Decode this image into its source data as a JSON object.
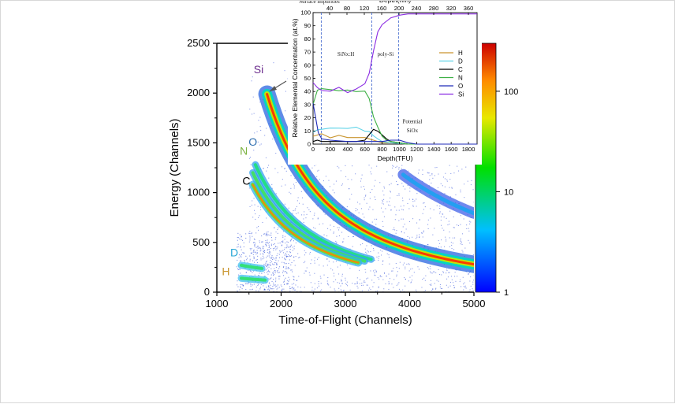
{
  "chart_data": [
    {
      "type": "heatmap",
      "title": "",
      "xlabel": "Time-of-Flight (Channels)",
      "ylabel": "Energy (Channels)",
      "xlim": [
        1000,
        5000
      ],
      "ylim": [
        0,
        2500
      ],
      "x_ticks": [
        "1000",
        "2000",
        "3000",
        "4000",
        "5000"
      ],
      "y_ticks": [
        "0",
        "500",
        "1000",
        "1500",
        "2000",
        "2500"
      ],
      "colorbar": {
        "scale": "log",
        "range": [
          1,
          300
        ],
        "ticks": [
          "1",
          "10",
          "100"
        ]
      },
      "colors": {
        "low": "#0000ff",
        "mid": "#00e000",
        "high": "#ff0000"
      },
      "ion_labels": [
        {
          "text": "Si",
          "tof": 1650,
          "energy": 2200,
          "color": "#6a2c8c"
        },
        {
          "text": "O",
          "tof": 1560,
          "energy": 1470,
          "color": "#2f6fb0"
        },
        {
          "text": "N",
          "tof": 1420,
          "energy": 1380,
          "color": "#7cb342"
        },
        {
          "text": "C",
          "tof": 1460,
          "energy": 1080,
          "color": "#000000"
        },
        {
          "text": "D",
          "tof": 1270,
          "energy": 360,
          "color": "#2aa7d6"
        },
        {
          "text": "H",
          "tof": 1140,
          "energy": 170,
          "color": "#c9952e"
        }
      ],
      "bands": [
        {
          "name": "Si",
          "tof_range": [
            1780,
            5000
          ],
          "energy_at_start": 1990,
          "intensity": "high"
        },
        {
          "name": "Si (recoil)",
          "tof_range": [
            3900,
            5000
          ],
          "energy_at_start": 1180,
          "intensity": "low"
        },
        {
          "name": "O",
          "tof_range": [
            1600,
            3400
          ],
          "energy_at_start": 1280,
          "intensity": "medium"
        },
        {
          "name": "N",
          "tof_range": [
            1560,
            3300
          ],
          "energy_at_start": 1200,
          "intensity": "medium"
        },
        {
          "name": "C",
          "tof_range": [
            1560,
            3200
          ],
          "energy_at_start": 1080,
          "intensity": "medium"
        },
        {
          "name": "D",
          "tof_range": [
            1380,
            1700
          ],
          "energy_at_start": 270,
          "intensity": "medium"
        },
        {
          "name": "H",
          "tof_range": [
            1380,
            1750
          ],
          "energy_at_start": 140,
          "intensity": "medium"
        }
      ]
    },
    {
      "type": "line",
      "title": "",
      "xlabel": "Depth(TFU)",
      "top_xlabel": "Depth(nm)",
      "ylabel": "Relative Elemental Concentration (at.%)",
      "xlim": [
        0,
        1900
      ],
      "ylim": [
        0,
        100
      ],
      "x_ticks": [
        "0",
        "200",
        "400",
        "600",
        "800",
        "1000",
        "1200",
        "1400",
        "1600",
        "1800"
      ],
      "top_x_ticks": [
        "40",
        "80",
        "120",
        "160",
        "200",
        "240",
        "280",
        "320",
        "360"
      ],
      "y_ticks": [
        "0",
        "10",
        "20",
        "30",
        "40",
        "50",
        "60",
        "70",
        "80",
        "90",
        "100"
      ],
      "annotations": [
        {
          "text": "Surface impurities",
          "x": 90,
          "y": 107
        },
        {
          "text": "SiNx:H",
          "x": 380,
          "y": 67
        },
        {
          "text": "poly-Si",
          "x": 840,
          "y": 67
        },
        {
          "text": "Potential",
          "x": 1150,
          "y": 16
        },
        {
          "text": "SiOx",
          "x": 1150,
          "y": 9
        }
      ],
      "region_markers": [
        95,
        680,
        990
      ],
      "series": [
        {
          "name": "H",
          "color": "#c9952e",
          "x": [
            0,
            100,
            200,
            300,
            400,
            500,
            600,
            650,
            700,
            750,
            800,
            900,
            1000,
            1100,
            1200,
            1400,
            1600,
            1900
          ],
          "y": [
            6,
            7,
            6,
            6,
            5,
            6,
            5,
            4,
            3,
            2,
            1,
            1,
            0.5,
            0,
            0,
            0,
            0,
            0
          ]
        },
        {
          "name": "D",
          "color": "#5fd3e8",
          "x": [
            0,
            50,
            100,
            200,
            300,
            400,
            500,
            600,
            650,
            700,
            750,
            800,
            900,
            1000,
            1100,
            1200,
            1400,
            1900
          ],
          "y": [
            8,
            11,
            12,
            11,
            13,
            12,
            12,
            11,
            9,
            6,
            4,
            2,
            1,
            0.5,
            0,
            0,
            0,
            0
          ]
        },
        {
          "name": "C",
          "color": "#000000",
          "x": [
            0,
            50,
            100,
            200,
            300,
            400,
            500,
            600,
            650,
            700,
            750,
            800,
            850,
            900,
            1000,
            1100,
            1900
          ],
          "y": [
            2,
            3,
            2,
            2,
            2,
            2,
            2,
            3,
            6,
            12,
            10,
            6,
            4,
            2,
            1,
            0,
            0
          ]
        },
        {
          "name": "N",
          "color": "#3cb043",
          "x": [
            0,
            50,
            100,
            200,
            300,
            400,
            500,
            600,
            650,
            700,
            750,
            800,
            850,
            900,
            1000,
            1100,
            1900
          ],
          "y": [
            30,
            42,
            41,
            42,
            41,
            40,
            41,
            40,
            34,
            22,
            12,
            6,
            3,
            2,
            1,
            0,
            0
          ]
        },
        {
          "name": "O",
          "color": "#1f2bb8",
          "x": [
            0,
            30,
            60,
            100,
            200,
            400,
            600,
            700,
            800,
            900,
            1000,
            1100,
            1200,
            1900
          ],
          "y": [
            32,
            20,
            8,
            4,
            3,
            2,
            2,
            2,
            2,
            3,
            3,
            1,
            0,
            0
          ]
        },
        {
          "name": "Si",
          "color": "#8a2be2",
          "x": [
            0,
            50,
            100,
            200,
            300,
            400,
            500,
            600,
            650,
            700,
            750,
            800,
            900,
            1000,
            1100,
            1200,
            1400,
            1600,
            1900
          ],
          "y": [
            48,
            42,
            41,
            41,
            42,
            40,
            42,
            45,
            55,
            70,
            85,
            92,
            96,
            98,
            99,
            99,
            99,
            99,
            99
          ]
        }
      ]
    }
  ]
}
